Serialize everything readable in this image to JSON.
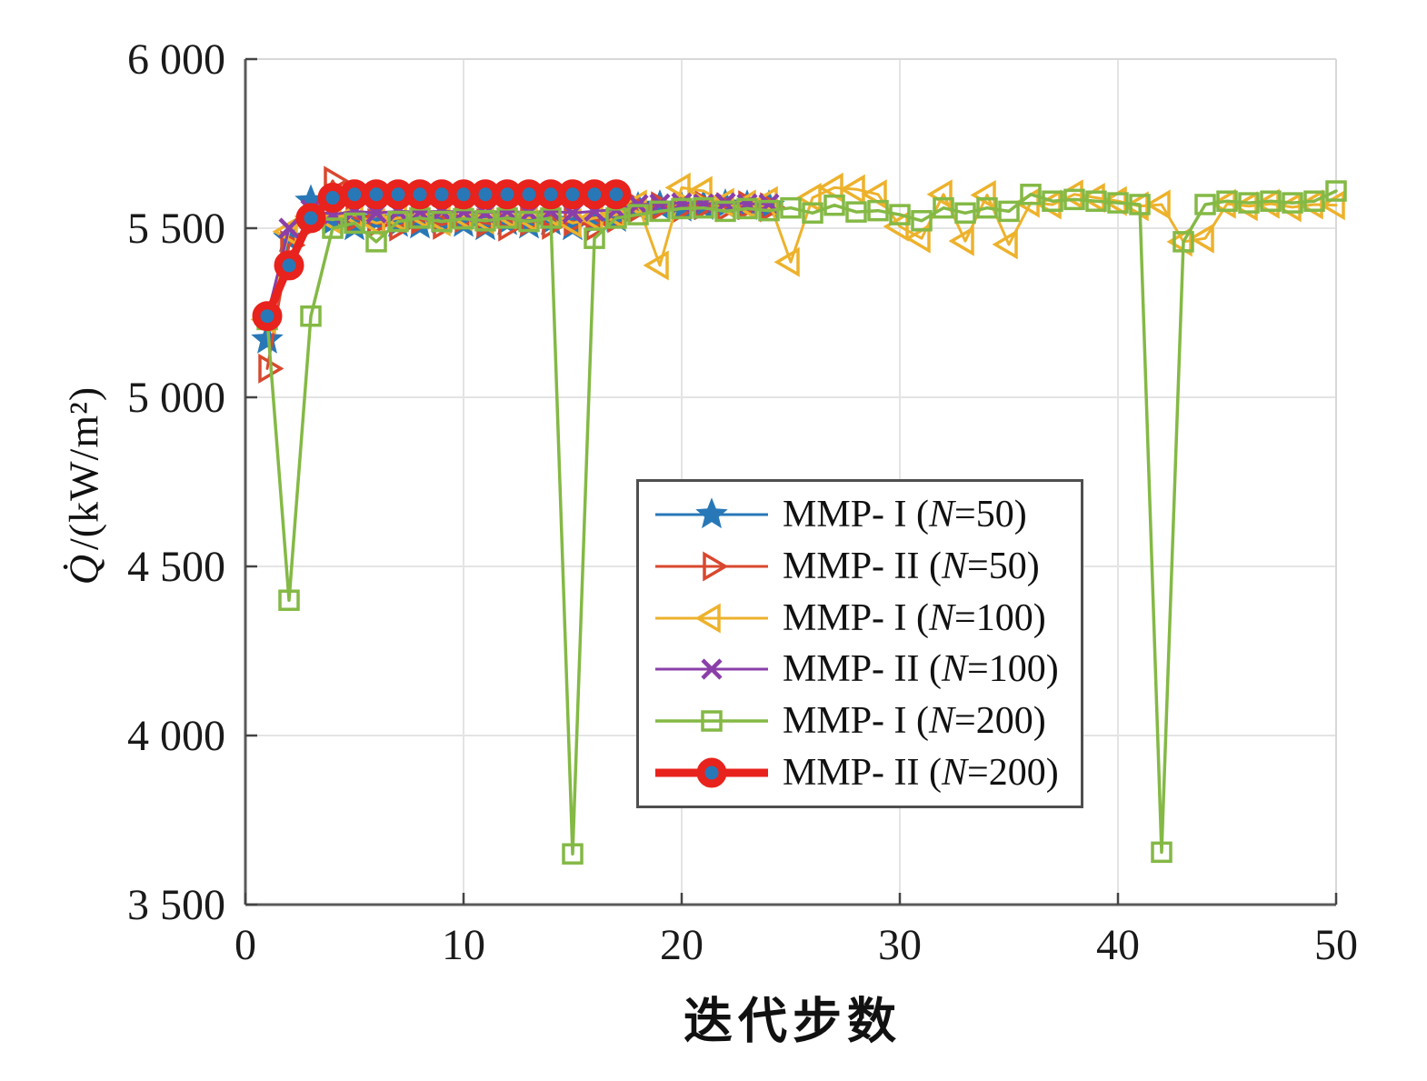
{
  "figure": {
    "title": "",
    "xlabel": "迭代步数",
    "ylabel": "Q̇/(kW/m²)",
    "ylabel_parts": {
      "symbol": "Q̇",
      "rest": "/(kW/m²)"
    }
  },
  "chart_data": {
    "type": "line",
    "title": "",
    "xlabel": "迭代步数",
    "ylabel": "Q̇/(kW/m²)",
    "xlim": [
      0,
      50
    ],
    "ylim": [
      3500,
      6000
    ],
    "xticks": [
      0,
      10,
      20,
      30,
      40,
      50
    ],
    "xtick_labels": [
      "0",
      "10",
      "20",
      "30",
      "40",
      "50"
    ],
    "yticks": [
      3500,
      4000,
      4500,
      5000,
      5500,
      6000
    ],
    "ytick_labels": [
      "3 500",
      "4 000",
      "4 500",
      "5 000",
      "5 500",
      "6 000"
    ],
    "grid": true,
    "legend_position": "inside center-bottom box",
    "series": [
      {
        "name": "MMP-I (N=50)",
        "label": {
          "before": "MMP- I (",
          "italic": "N",
          "after": "=50)"
        },
        "color": "#2878b8",
        "marker": "star",
        "line_width": 3,
        "x": [
          1,
          2,
          3,
          4,
          5,
          6,
          7,
          8,
          9,
          10,
          11,
          12,
          13,
          14,
          15,
          16,
          17,
          18,
          19,
          20,
          21,
          22,
          23,
          24
        ],
        "y": [
          5170,
          5470,
          5580,
          5520,
          5505,
          5525,
          5515,
          5510,
          5525,
          5515,
          5505,
          5520,
          5510,
          5520,
          5505,
          5520,
          5530,
          5560,
          5565,
          5560,
          5565,
          5568,
          5565,
          5565
        ]
      },
      {
        "name": "MMP-II (N=50)",
        "label": {
          "before": "MMP- II (",
          "italic": "N",
          "after": "=50)"
        },
        "color": "#d9482e",
        "marker": "triangle-right",
        "line_width": 3,
        "x": [
          1,
          2,
          3,
          4,
          5,
          6,
          7,
          8,
          9,
          10,
          11,
          12,
          13,
          14,
          15,
          16,
          17,
          18,
          19,
          20,
          21,
          22,
          23,
          24
        ],
        "y": [
          5085,
          5450,
          5515,
          5640,
          5530,
          5515,
          5505,
          5525,
          5510,
          5530,
          5515,
          5505,
          5520,
          5510,
          5520,
          5505,
          5530,
          5560,
          5565,
          5560,
          5568,
          5562,
          5568,
          5562
        ]
      },
      {
        "name": "MMP-I (N=100)",
        "label": {
          "before": "MMP- I (",
          "italic": "N",
          "after": "=100)"
        },
        "color": "#edb22c",
        "marker": "triangle-left",
        "line_width": 3,
        "x": [
          1,
          2,
          3,
          4,
          5,
          6,
          7,
          8,
          9,
          10,
          11,
          12,
          13,
          14,
          15,
          16,
          17,
          18,
          19,
          20,
          21,
          22,
          23,
          24,
          25,
          26,
          27,
          28,
          29,
          30,
          31,
          32,
          33,
          34,
          35,
          36,
          37,
          38,
          39,
          40,
          41,
          42,
          43,
          44,
          45,
          46,
          47,
          48,
          49,
          50
        ],
        "y": [
          5230,
          5490,
          5535,
          5525,
          5540,
          5515,
          5530,
          5540,
          5520,
          5535,
          5525,
          5540,
          5530,
          5545,
          5515,
          5530,
          5540,
          5570,
          5390,
          5620,
          5610,
          5575,
          5570,
          5580,
          5400,
          5590,
          5620,
          5615,
          5600,
          5505,
          5470,
          5600,
          5462,
          5598,
          5452,
          5575,
          5570,
          5600,
          5590,
          5580,
          5565,
          5570,
          5460,
          5470,
          5572,
          5565,
          5572,
          5562,
          5570,
          5568
        ]
      },
      {
        "name": "MMP-II (N=100)",
        "label": {
          "before": "MMP- II (",
          "italic": "N",
          "after": "=100)"
        },
        "color": "#8a3fa8",
        "marker": "x",
        "line_width": 3,
        "x": [
          1,
          2,
          3,
          4,
          5,
          6,
          7,
          8,
          9,
          10,
          11,
          12,
          13,
          14,
          15,
          16,
          17,
          18,
          19,
          20,
          21,
          22,
          23,
          24
        ],
        "y": [
          5240,
          5500,
          5555,
          5540,
          5550,
          5545,
          5550,
          5548,
          5550,
          5548,
          5545,
          5550,
          5546,
          5550,
          5545,
          5550,
          5555,
          5570,
          5572,
          5575,
          5572,
          5575,
          5572,
          5572
        ]
      },
      {
        "name": "MMP-I (N=200)",
        "label": {
          "before": "MMP- I (",
          "italic": "N",
          "after": "=200)"
        },
        "color": "#84b945",
        "marker": "square",
        "line_width": 3.5,
        "x": [
          1,
          2,
          3,
          4,
          5,
          6,
          7,
          8,
          9,
          10,
          11,
          12,
          13,
          14,
          15,
          16,
          17,
          18,
          19,
          20,
          21,
          22,
          23,
          24,
          25,
          26,
          27,
          28,
          29,
          30,
          31,
          32,
          33,
          34,
          35,
          36,
          37,
          38,
          39,
          40,
          41,
          42,
          43,
          44,
          45,
          46,
          47,
          48,
          49,
          50
        ],
        "y": [
          5230,
          4400,
          5240,
          5500,
          5515,
          5460,
          5520,
          5530,
          5520,
          5528,
          5522,
          5530,
          5520,
          5530,
          3650,
          5470,
          5530,
          5540,
          5550,
          5558,
          5560,
          5550,
          5558,
          5552,
          5560,
          5545,
          5568,
          5548,
          5552,
          5540,
          5522,
          5560,
          5545,
          5560,
          5550,
          5600,
          5580,
          5585,
          5580,
          5575,
          5570,
          3655,
          5460,
          5570,
          5580,
          5575,
          5580,
          5575,
          5580,
          5610
        ]
      },
      {
        "name": "MMP-II (N=200)",
        "label": {
          "before": "MMP- II (",
          "italic": "N",
          "after": "=200)"
        },
        "color": "#e8221c",
        "marker": "circle",
        "marker_face": "#2878b8",
        "marker_edge": "#e8221c",
        "line_width": 9,
        "x": [
          1,
          2,
          3,
          4,
          5,
          6,
          7,
          8,
          9,
          10,
          11,
          12,
          13,
          14,
          15,
          16,
          17
        ],
        "y": [
          5240,
          5390,
          5530,
          5590,
          5600,
          5600,
          5600,
          5600,
          5600,
          5600,
          5600,
          5600,
          5600,
          5600,
          5600,
          5600,
          5600
        ]
      }
    ]
  }
}
